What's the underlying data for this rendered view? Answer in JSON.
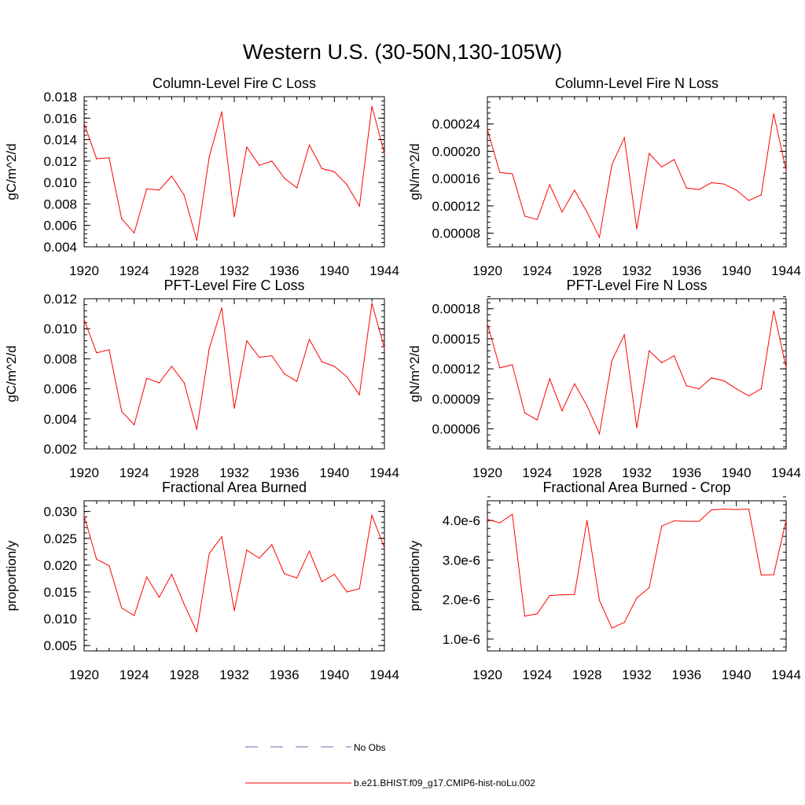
{
  "figure": {
    "title": "Western U.S. (30-50N,130-105W)"
  },
  "legend": {
    "obs_label": "No Obs",
    "obs_color": "#6a6ab0",
    "model_label": "b.e21.BHIST.f09_g17.CMIP6-hist-noLu.002",
    "model_color": "#ff0000"
  },
  "chart_data": [
    {
      "type": "line",
      "title": "Column-Level Fire C Loss",
      "ylabel": "gC/m^2/d",
      "xlim": [
        1920,
        1944
      ],
      "ylim": [
        0.004,
        0.018
      ],
      "xticks": [
        "1920",
        "1924",
        "1928",
        "1932",
        "1936",
        "1940",
        "1944"
      ],
      "yticks": [
        "0.004",
        "0.006",
        "0.008",
        "0.010",
        "0.012",
        "0.014",
        "0.016",
        "0.018"
      ],
      "grid": false,
      "color": "#ff0000",
      "x": [
        1920,
        1921,
        1922,
        1923,
        1924,
        1925,
        1926,
        1927,
        1928,
        1929,
        1930,
        1931,
        1932,
        1933,
        1934,
        1935,
        1936,
        1937,
        1938,
        1939,
        1940,
        1941,
        1942,
        1943,
        1944
      ],
      "y": [
        0.0155,
        0.0122,
        0.0123,
        0.0066,
        0.0053,
        0.0094,
        0.0093,
        0.0106,
        0.0088,
        0.0046,
        0.0124,
        0.0166,
        0.0068,
        0.0133,
        0.0116,
        0.012,
        0.0104,
        0.0095,
        0.0135,
        0.0113,
        0.011,
        0.0098,
        0.0078,
        0.0171,
        0.0127
      ]
    },
    {
      "type": "line",
      "title": "Column-Level Fire N Loss",
      "ylabel": "gN/m^2/d",
      "xlim": [
        1920,
        1944
      ],
      "ylim": [
        6e-05,
        0.00028
      ],
      "xticks": [
        "1920",
        "1924",
        "1928",
        "1932",
        "1936",
        "1940",
        "1944"
      ],
      "yticks": [
        "0.00008",
        "0.00012",
        "0.00016",
        "0.00020",
        "0.00024"
      ],
      "ytick_values": [
        8e-05,
        0.00012,
        0.00016,
        0.0002,
        0.00024
      ],
      "grid": false,
      "color": "#ff0000",
      "x": [
        1920,
        1921,
        1922,
        1923,
        1924,
        1925,
        1926,
        1927,
        1928,
        1929,
        1930,
        1931,
        1932,
        1933,
        1934,
        1935,
        1936,
        1937,
        1938,
        1939,
        1940,
        1941,
        1942,
        1943,
        1944
      ],
      "y": [
        0.000232,
        0.000169,
        0.000167,
        0.000105,
        0.0001,
        0.000151,
        0.000111,
        0.000143,
        0.000111,
        7.4e-05,
        0.00018,
        0.00022,
        8.6e-05,
        0.000197,
        0.000177,
        0.000188,
        0.000146,
        0.000144,
        0.000154,
        0.000152,
        0.000143,
        0.000128,
        0.000136,
        0.000255,
        0.000172
      ]
    },
    {
      "type": "line",
      "title": "PFT-Level Fire C Loss",
      "ylabel": "gC/m^2/d",
      "xlim": [
        1920,
        1944
      ],
      "ylim": [
        0.002,
        0.012
      ],
      "xticks": [
        "1920",
        "1924",
        "1928",
        "1932",
        "1936",
        "1940",
        "1944"
      ],
      "yticks": [
        "0.002",
        "0.004",
        "0.006",
        "0.008",
        "0.010",
        "0.012"
      ],
      "grid": false,
      "color": "#ff0000",
      "x": [
        1920,
        1921,
        1922,
        1923,
        1924,
        1925,
        1926,
        1927,
        1928,
        1929,
        1930,
        1931,
        1932,
        1933,
        1934,
        1935,
        1936,
        1937,
        1938,
        1939,
        1940,
        1941,
        1942,
        1943,
        1944
      ],
      "y": [
        0.0106,
        0.0084,
        0.0086,
        0.0045,
        0.0036,
        0.0067,
        0.0064,
        0.0075,
        0.0064,
        0.0033,
        0.0087,
        0.0114,
        0.0047,
        0.0092,
        0.0081,
        0.0082,
        0.007,
        0.0065,
        0.0093,
        0.0078,
        0.0075,
        0.0068,
        0.0056,
        0.0117,
        0.0087
      ]
    },
    {
      "type": "line",
      "title": "PFT-Level Fire N Loss",
      "ylabel": "gN/m^2/d",
      "xlim": [
        1920,
        1944
      ],
      "ylim": [
        4e-05,
        0.00019
      ],
      "xticks": [
        "1920",
        "1924",
        "1928",
        "1932",
        "1936",
        "1940",
        "1944"
      ],
      "yticks": [
        "0.00006",
        "0.00009",
        "0.00012",
        "0.00015",
        "0.00018"
      ],
      "ytick_values": [
        6e-05,
        9e-05,
        0.00012,
        0.00015,
        0.00018
      ],
      "grid": false,
      "color": "#ff0000",
      "x": [
        1920,
        1921,
        1922,
        1923,
        1924,
        1925,
        1926,
        1927,
        1928,
        1929,
        1930,
        1931,
        1932,
        1933,
        1934,
        1935,
        1936,
        1937,
        1938,
        1939,
        1940,
        1941,
        1942,
        1943,
        1944
      ],
      "y": [
        0.000165,
        0.000121,
        0.000124,
        7.6e-05,
        6.9e-05,
        0.00011,
        7.8e-05,
        0.000105,
        8.3e-05,
        5.5e-05,
        0.000128,
        0.000154,
        6.1e-05,
        0.000138,
        0.000126,
        0.000133,
        0.000103,
        0.0001,
        0.000111,
        0.000108,
        0.0001,
        9.3e-05,
        0.0001,
        0.000178,
        0.000121
      ]
    },
    {
      "type": "line",
      "title": "Fractional Area Burned",
      "ylabel": "proportion/y",
      "xlim": [
        1920,
        1944
      ],
      "ylim": [
        0.004,
        0.032
      ],
      "xticks": [
        "1920",
        "1924",
        "1928",
        "1932",
        "1936",
        "1940",
        "1944"
      ],
      "yticks": [
        "0.005",
        "0.010",
        "0.015",
        "0.020",
        "0.025",
        "0.030"
      ],
      "ytick_values": [
        0.005,
        0.01,
        0.015,
        0.02,
        0.025,
        0.03
      ],
      "grid": false,
      "color": "#ff0000",
      "x": [
        1920,
        1921,
        1922,
        1923,
        1924,
        1925,
        1926,
        1927,
        1928,
        1929,
        1930,
        1931,
        1932,
        1933,
        1934,
        1935,
        1936,
        1937,
        1938,
        1939,
        1940,
        1941,
        1942,
        1943,
        1944
      ],
      "y": [
        0.0292,
        0.0211,
        0.0199,
        0.012,
        0.0106,
        0.0178,
        0.014,
        0.0183,
        0.0127,
        0.0076,
        0.0222,
        0.0253,
        0.0115,
        0.0228,
        0.0213,
        0.0238,
        0.0184,
        0.0176,
        0.0226,
        0.0169,
        0.0183,
        0.015,
        0.0156,
        0.0293,
        0.0232
      ]
    },
    {
      "type": "line",
      "title": "Fractional Area Burned - Crop",
      "ylabel": "proportion/y",
      "xlim": [
        1920,
        1944
      ],
      "ylim": [
        7e-07,
        4.5e-06
      ],
      "xticks": [
        "1920",
        "1924",
        "1928",
        "1932",
        "1936",
        "1940",
        "1944"
      ],
      "yticks": [
        "1.0e-6",
        "2.0e-6",
        "3.0e-6",
        "4.0e-6"
      ],
      "ytick_values": [
        1e-06,
        2e-06,
        3e-06,
        4e-06
      ],
      "grid": false,
      "color": "#ff0000",
      "x": [
        1920,
        1921,
        1922,
        1923,
        1924,
        1925,
        1926,
        1927,
        1928,
        1929,
        1930,
        1931,
        1932,
        1933,
        1934,
        1935,
        1936,
        1937,
        1938,
        1939,
        1940,
        1941,
        1942,
        1943,
        1944
      ],
      "y": [
        4.03e-06,
        3.94e-06,
        4.16e-06,
        1.58e-06,
        1.64e-06,
        2.1e-06,
        2.12e-06,
        2.13e-06,
        4e-06,
        1.98e-06,
        1.28e-06,
        1.42e-06,
        2.04e-06,
        2.3e-06,
        3.86e-06,
        3.99e-06,
        3.98e-06,
        3.98e-06,
        4.27e-06,
        4.29e-06,
        4.28e-06,
        4.29e-06,
        2.62e-06,
        2.63e-06,
        4.01e-06
      ]
    }
  ]
}
